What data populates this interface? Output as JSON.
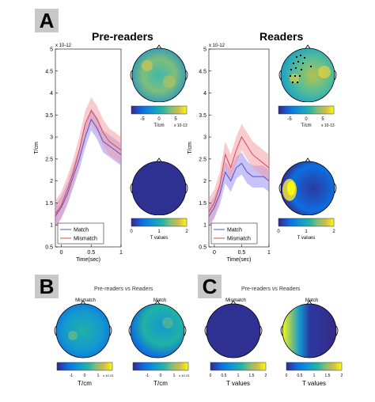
{
  "panels": {
    "a": {
      "label": "A",
      "groups": [
        {
          "title": "Pre-readers",
          "ylabel": "T/cm",
          "xlabel": "Time(sec)",
          "exponent": "x 10-12",
          "ylim": [
            0.5,
            5
          ],
          "xlim": [
            -0.1,
            1
          ],
          "yticks": [
            "0.5",
            "1",
            "1.5",
            "2",
            "2.5",
            "3",
            "3.5",
            "4",
            "4.5",
            "5"
          ],
          "xticks": [
            "0",
            "0.5",
            "1"
          ],
          "legend": [
            "Match",
            "Mismatch"
          ],
          "top_colorbar": {
            "ticks": [
              "-5",
              "0",
              "5"
            ],
            "label": "T/cm",
            "exponent": "x 10-13"
          },
          "bottom_colorbar": {
            "ticks": [
              "0",
              "1",
              "2"
            ],
            "label": "T values"
          }
        },
        {
          "title": "Readers",
          "ylabel": "T/cm",
          "xlabel": "Time(sec)",
          "exponent": "x 10-12",
          "ylim": [
            0.5,
            5
          ],
          "xlim": [
            -0.1,
            1
          ],
          "yticks": [
            "0.5",
            "1",
            "1.5",
            "2",
            "2.5",
            "3",
            "3.5",
            "4",
            "4.5",
            "5"
          ],
          "xticks": [
            "0",
            "0.5",
            "1"
          ],
          "legend": [
            "Match",
            "Mismatch"
          ],
          "top_colorbar": {
            "ticks": [
              "-5",
              "0",
              "5"
            ],
            "label": "T/cm",
            "exponent": "x 10-13"
          },
          "bottom_colorbar": {
            "ticks": [
              "0",
              "1",
              "2"
            ],
            "label": "T values"
          }
        }
      ]
    },
    "b": {
      "label": "B",
      "subtitle": "Pre-readers vs Readers",
      "maps": [
        "Mismatch",
        "Match"
      ],
      "colorbar_label": "T/cm",
      "colorbar_ticks": [
        "-1",
        "0",
        "1"
      ],
      "colorbar_exponent": "x 10-13"
    },
    "c": {
      "label": "C",
      "subtitle": "Pre-readers vs Readers",
      "maps": [
        "Mismatch",
        "Match"
      ],
      "colorbar_label": "T values",
      "colorbar_ticks": [
        "0",
        "0.5",
        "1",
        "1.5",
        "2"
      ]
    }
  },
  "colors": {
    "match": "#5a4fcf",
    "mismatch": "#d9474f",
    "match_band": "#8f86f0",
    "mismatch_band": "#f19aa0",
    "parula_low": "#352a87",
    "parula_mid": "#21b1a6",
    "parula_high": "#f9fb0e"
  },
  "chart_data": [
    {
      "type": "line",
      "title": "Pre-readers",
      "xlabel": "Time(sec)",
      "ylabel": "T/cm",
      "xlim": [
        -0.1,
        1
      ],
      "ylim": [
        0.5,
        5
      ],
      "x": [
        -0.1,
        0,
        0.1,
        0.2,
        0.3,
        0.4,
        0.5,
        0.6,
        0.7,
        0.8,
        0.9,
        1.0
      ],
      "series": [
        {
          "name": "Match",
          "values": [
            1.2,
            1.4,
            1.7,
            2.1,
            2.5,
            3.0,
            3.4,
            3.2,
            2.9,
            2.8,
            2.7,
            2.6
          ]
        },
        {
          "name": "Mismatch",
          "values": [
            1.25,
            1.45,
            1.8,
            2.2,
            2.7,
            3.3,
            3.6,
            3.4,
            3.1,
            2.9,
            2.8,
            2.7
          ]
        }
      ],
      "grid": false,
      "legend": "bottom-left"
    },
    {
      "type": "line",
      "title": "Readers",
      "xlabel": "Time(sec)",
      "ylabel": "T/cm",
      "xlim": [
        -0.1,
        1
      ],
      "ylim": [
        0.5,
        5
      ],
      "x": [
        -0.1,
        0,
        0.1,
        0.2,
        0.3,
        0.4,
        0.5,
        0.6,
        0.7,
        0.8,
        0.9,
        1.0
      ],
      "series": [
        {
          "name": "Match",
          "values": [
            1.2,
            1.4,
            1.7,
            2.2,
            2.0,
            2.3,
            2.4,
            2.2,
            2.1,
            2.1,
            2.1,
            2.0
          ]
        },
        {
          "name": "Mismatch",
          "values": [
            1.3,
            1.5,
            1.9,
            2.6,
            2.3,
            2.7,
            3.0,
            2.8,
            2.6,
            2.5,
            2.4,
            2.3
          ]
        }
      ],
      "grid": false,
      "legend": "bottom-left"
    }
  ]
}
